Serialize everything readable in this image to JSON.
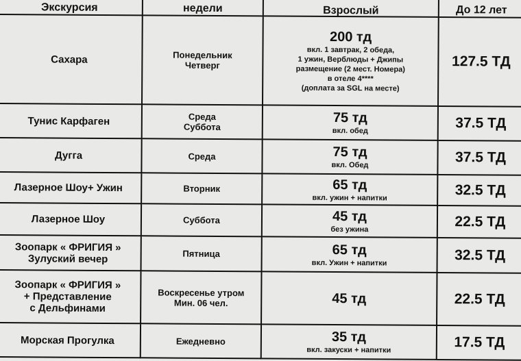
{
  "header": {
    "col1": "Экскурсия",
    "col2": "недели",
    "col3": "Взрослый",
    "col4": "До 12 лет"
  },
  "rows": [
    {
      "name": "Сахара",
      "days": "Понедельник\nЧетверг",
      "price": "200 тд",
      "note": "вкл. 1 завтрак, 2 обеда,\n1 ужин, Верблюды +  Джипы\nразмещение (2 мест. Номера)\nв отеле 4****\n(доплата за SGL на месте)",
      "child": "127.5 ТД"
    },
    {
      "name": "Тунис Карфаген",
      "days": "Среда\nСуббота",
      "price": "75 тд",
      "note": "вкл. обед",
      "child": "37.5 ТД"
    },
    {
      "name": "Дугга",
      "days": "Среда",
      "price": "75 тд",
      "note": "вкл. Обед",
      "child": "37.5 ТД"
    },
    {
      "name": "Лазерное Шоу+ Ужин",
      "days": "Вторник",
      "price": "65 тд",
      "note": "вкл. ужин + напитки",
      "child": "32.5 ТД"
    },
    {
      "name": "Лазерное Шоу",
      "days": "Суббота",
      "price": "45 тд",
      "note": "без ужина",
      "child": "22.5 ТД"
    },
    {
      "name": "Зоопарк « ФРИГИЯ »\nЗулуский вечер",
      "days": "Пятница",
      "price": "65 тд",
      "note": "вкл. Ужин + напитки",
      "child": "32.5 ТД"
    },
    {
      "name": "Зоопарк « ФРИГИЯ »\n+ Представление\nс Дельфинами",
      "days": "Воскресенье утром\nМин. 06 чел.",
      "price": "45 тд",
      "note": "",
      "child": "22.5 ТД"
    },
    {
      "name": "Морская Прогулка",
      "days": "Ежедневно",
      "price": "35 тд",
      "note": "вкл. закуски + напитки",
      "child": "17.5 ТД"
    }
  ]
}
